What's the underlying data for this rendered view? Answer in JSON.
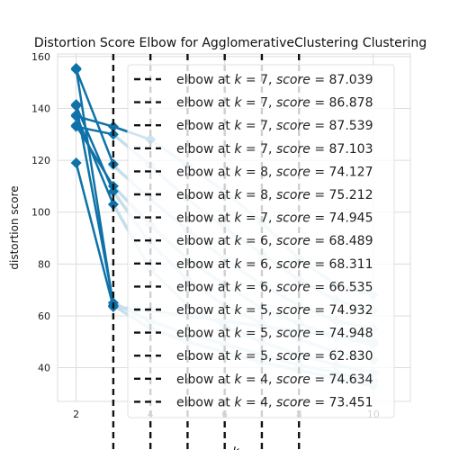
{
  "chart_data": {
    "type": "line",
    "title": "Distortion Score Elbow for AgglomerativeClustering Clustering",
    "ylabel": "distortion score",
    "xlabel_visible_fragment": "k",
    "xlim": [
      1.5,
      11.0
    ],
    "ylim": [
      27,
      161
    ],
    "xticks": [
      2,
      4,
      6,
      8,
      10
    ],
    "xtick_labels": [
      "2",
      "4",
      "6",
      "8",
      "10"
    ],
    "yticks": [
      40,
      60,
      80,
      100,
      120,
      140,
      160
    ],
    "ytick_labels": [
      "40",
      "60",
      "80",
      "100",
      "120",
      "140",
      "160"
    ],
    "grid": true,
    "legend_placement": "top-right (overflowing plot)",
    "colors": {
      "primary_series": "#0e72a8",
      "faded_series": "#c5dfeb",
      "elbow_line": "#111111",
      "grid": "#dcdcdc",
      "legend_bg": "#ffffff",
      "axes_bg": "#ffffff"
    },
    "highlighted_series": [
      {
        "x": [
          2,
          3
        ],
        "y": [
          155.5,
          64.0
        ]
      },
      {
        "x": [
          2,
          3
        ],
        "y": [
          141.5,
          65.0
        ]
      },
      {
        "x": [
          2,
          3,
          4
        ],
        "y": [
          137.0,
          133.0,
          128.0
        ]
      },
      {
        "x": [
          2,
          3
        ],
        "y": [
          133.0,
          130.0
        ]
      },
      {
        "x": [
          2,
          3
        ],
        "y": [
          119.0,
          63.5
        ]
      },
      {
        "x": [
          2,
          3
        ],
        "y": [
          155.0,
          118.5
        ]
      },
      {
        "x": [
          2,
          3
        ],
        "y": [
          141.0,
          108.0
        ]
      },
      {
        "x": [
          2,
          3
        ],
        "y": [
          137.5,
          103.0
        ]
      },
      {
        "x": [
          2,
          3
        ],
        "y": [
          133.5,
          110.0
        ]
      }
    ],
    "faded_series": [
      {
        "x": [
          3,
          4,
          5,
          6,
          7,
          8,
          9,
          10
        ],
        "y": [
          133,
          128,
          118,
          108,
          96,
          82,
          72,
          68
        ]
      },
      {
        "x": [
          3,
          4,
          5,
          6,
          7,
          8,
          9,
          10
        ],
        "y": [
          130,
          118,
          105,
          94,
          84,
          74,
          66,
          62
        ]
      },
      {
        "x": [
          3,
          4,
          5,
          6,
          7,
          8,
          9,
          10
        ],
        "y": [
          118,
          105,
          93,
          82,
          72,
          64,
          58,
          55
        ]
      },
      {
        "x": [
          3,
          4,
          5,
          6,
          7,
          8,
          9,
          10
        ],
        "y": [
          110,
          95,
          82,
          72,
          63,
          57,
          52,
          49
        ]
      },
      {
        "x": [
          3,
          4,
          5,
          6,
          7,
          8,
          9,
          10
        ],
        "y": [
          108,
          88,
          74,
          64,
          57,
          51,
          46,
          43
        ]
      },
      {
        "x": [
          3,
          4,
          5,
          6,
          7,
          8,
          9,
          10
        ],
        "y": [
          103,
          78,
          64,
          56,
          50,
          45,
          41,
          38
        ]
      },
      {
        "x": [
          3,
          4,
          5,
          6,
          7,
          8,
          9,
          10
        ],
        "y": [
          65,
          58,
          53,
          49,
          45,
          41,
          38,
          35
        ]
      },
      {
        "x": [
          3,
          4,
          5,
          6,
          7,
          8,
          9,
          10
        ],
        "y": [
          64,
          55,
          50,
          46,
          42,
          39,
          36,
          33
        ]
      },
      {
        "x": [
          3,
          4,
          5,
          6,
          7,
          8,
          9,
          10
        ],
        "y": [
          63.5,
          62,
          60,
          58,
          56,
          54,
          52,
          50
        ]
      }
    ],
    "elbow_lines": [
      3,
      4,
      5,
      6,
      7,
      8
    ],
    "legend": [
      {
        "k": "7",
        "score": "87.039"
      },
      {
        "k": "7",
        "score": "86.878"
      },
      {
        "k": "7",
        "score": "87.539"
      },
      {
        "k": "7",
        "score": "87.103"
      },
      {
        "k": "8",
        "score": "74.127"
      },
      {
        "k": "8",
        "score": "75.212"
      },
      {
        "k": "7",
        "score": "74.945"
      },
      {
        "k": "6",
        "score": "68.489"
      },
      {
        "k": "6",
        "score": "68.311"
      },
      {
        "k": "6",
        "score": "66.535"
      },
      {
        "k": "5",
        "score": "74.932"
      },
      {
        "k": "5",
        "score": "74.948"
      },
      {
        "k": "5",
        "score": "62.830"
      },
      {
        "k": "4",
        "score": "74.634"
      },
      {
        "k": "4",
        "score": "73.451"
      }
    ]
  }
}
